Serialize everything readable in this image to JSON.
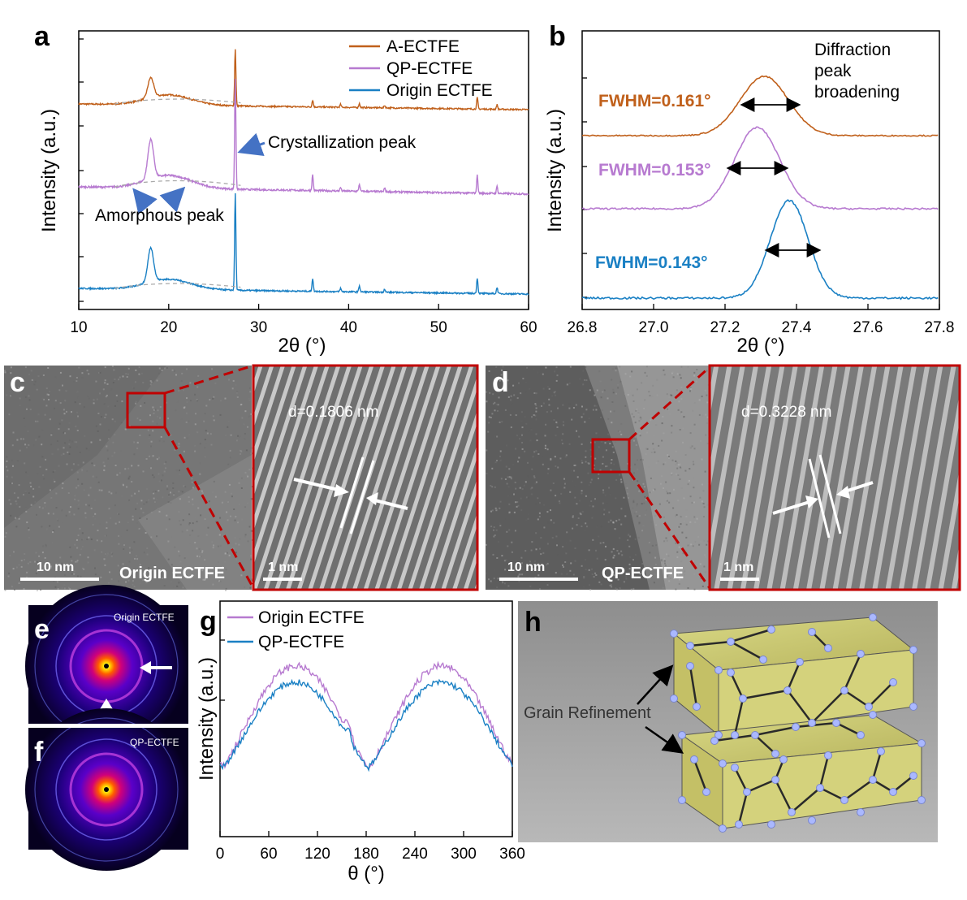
{
  "panels": {
    "a": {
      "label": "a"
    },
    "b": {
      "label": "b"
    },
    "c": {
      "label": "c",
      "scale_overview": "10 nm",
      "scale_zoom": "1 nm",
      "sample": "Origin ECTFE",
      "d_spacing": "d=0.1806 nm"
    },
    "d": {
      "label": "d",
      "scale_overview": "10 nm",
      "scale_zoom": "1 nm",
      "sample": "QP-ECTFE",
      "d_spacing": "d=0.3228 nm"
    },
    "e": {
      "label": "e",
      "sample": "Origin ECTFE"
    },
    "f": {
      "label": "f",
      "sample": "QP-ECTFE"
    },
    "g": {
      "label": "g"
    },
    "h": {
      "label": "h",
      "annotation": "Grain Refinement"
    }
  },
  "colors": {
    "a_ectfe": "#c0601b",
    "qp_ectfe": "#b77ad0",
    "origin_ectfe": "#1a80c4",
    "arrow": "#4472c4",
    "tem_box": "#c00000"
  },
  "chart_data": [
    {
      "id": "a",
      "type": "line",
      "xlabel": "2θ (°)",
      "ylabel": "Intensity (a.u.)",
      "xlim": [
        10,
        60
      ],
      "xticks": [
        10,
        20,
        30,
        40,
        50,
        60
      ],
      "legend": "top-right",
      "series": [
        {
          "name": "A-ECTFE",
          "color": "#c0601b",
          "peaks": [
            [
              18.0,
              0.35
            ],
            [
              27.4,
              1.0
            ],
            [
              36.0,
              0.12
            ],
            [
              39.1,
              0.05
            ],
            [
              41.2,
              0.07
            ],
            [
              44.0,
              0.04
            ],
            [
              54.3,
              0.2
            ],
            [
              56.5,
              0.08
            ]
          ]
        },
        {
          "name": "QP-ECTFE",
          "color": "#b77ad0",
          "peaks": [
            [
              18.0,
              0.55
            ],
            [
              27.4,
              1.55
            ],
            [
              36.0,
              0.22
            ],
            [
              39.1,
              0.05
            ],
            [
              41.2,
              0.1
            ],
            [
              44.0,
              0.05
            ],
            [
              54.3,
              0.25
            ],
            [
              56.5,
              0.1
            ]
          ]
        },
        {
          "name": "Origin ECTFE",
          "color": "#1a80c4",
          "peaks": [
            [
              18.0,
              0.6
            ],
            [
              27.4,
              1.7
            ],
            [
              36.0,
              0.23
            ],
            [
              39.1,
              0.06
            ],
            [
              41.2,
              0.11
            ],
            [
              44.0,
              0.06
            ],
            [
              54.3,
              0.27
            ],
            [
              56.5,
              0.11
            ]
          ]
        }
      ],
      "annotations": [
        "Crystallization peak",
        "Amorphous peak"
      ]
    },
    {
      "id": "b",
      "type": "line",
      "xlabel": "2θ (°)",
      "ylabel": "Intensity (a.u.)",
      "xlim": [
        26.8,
        27.8
      ],
      "xticks": [
        "26.8",
        "27.0",
        "27.2",
        "27.4",
        "27.6",
        "27.8"
      ],
      "series": [
        {
          "name": "A-ECTFE",
          "color": "#c0601b",
          "center": 27.31,
          "fwhm": "FWHM=0.161°"
        },
        {
          "name": "QP-ECTFE",
          "color": "#b77ad0",
          "center": 27.29,
          "fwhm": "FWHM=0.153°"
        },
        {
          "name": "Origin ECTFE",
          "color": "#1a80c4",
          "center": 27.38,
          "fwhm": "FWHM=0.143°"
        }
      ],
      "annotations": [
        "Diffraction",
        "peak",
        "broadening"
      ]
    },
    {
      "id": "g",
      "type": "line",
      "xlabel": "θ (°)",
      "ylabel": "Intensity (a.u.)",
      "xlim": [
        0,
        360
      ],
      "xticks": [
        0,
        60,
        120,
        180,
        240,
        300,
        360
      ],
      "legend": "top-left",
      "series": [
        {
          "name": "Origin ECTFE",
          "color": "#b77ad0"
        },
        {
          "name": "QP-ECTFE",
          "color": "#1a80c4"
        }
      ]
    }
  ]
}
